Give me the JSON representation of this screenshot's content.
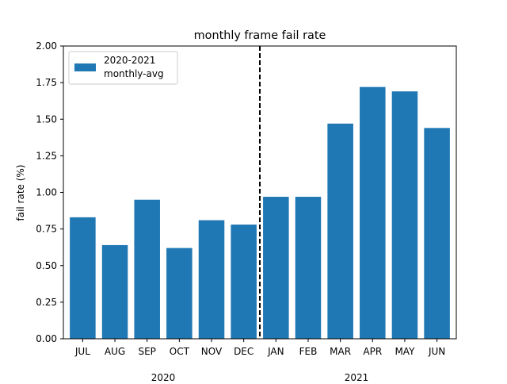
{
  "chart_data": {
    "type": "bar",
    "title": "monthly frame fail rate",
    "xlabel": "",
    "ylabel": "fail rate (%)",
    "ylim": [
      0,
      2.0
    ],
    "yticks": [
      "0.00",
      "0.25",
      "0.50",
      "0.75",
      "1.00",
      "1.25",
      "1.50",
      "1.75",
      "2.00"
    ],
    "categories": [
      "JUL",
      "AUG",
      "SEP",
      "OCT",
      "NOV",
      "DEC",
      "JAN",
      "FEB",
      "MAR",
      "APR",
      "MAY",
      "JUN"
    ],
    "year_groups": [
      {
        "label": "2020",
        "start_index": 0,
        "end_index": 5
      },
      {
        "label": "2021",
        "start_index": 6,
        "end_index": 11
      }
    ],
    "series": [
      {
        "name": "2020-2021\nmonthly-avg",
        "color": "#1f77b4",
        "values": [
          0.83,
          0.64,
          0.95,
          0.62,
          0.81,
          0.78,
          0.97,
          0.97,
          1.47,
          1.72,
          1.69,
          1.44
        ]
      }
    ],
    "divider": {
      "after_category": "DEC",
      "style": "dashed",
      "color": "#000000"
    },
    "legend": {
      "position": "upper-left",
      "lines": [
        "2020-2021",
        "monthly-avg"
      ]
    },
    "grid": false
  }
}
